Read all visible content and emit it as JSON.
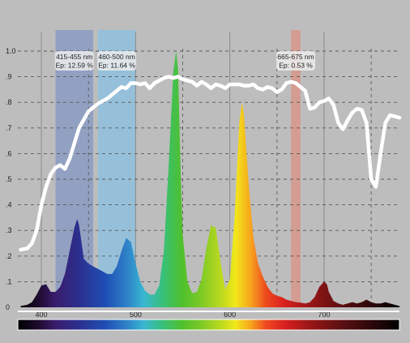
{
  "chart_data": {
    "type": "area",
    "title": "",
    "xlabel": "",
    "ylabel": "",
    "xlim": [
      375,
      780
    ],
    "ylim": [
      0,
      1.0
    ],
    "x_ticks": [
      400,
      500,
      600,
      700
    ],
    "y_ticks": [
      0,
      0.1,
      0.2,
      0.3,
      0.4,
      0.5,
      0.6,
      0.7,
      0.8,
      0.9,
      1.0
    ],
    "y_tick_labels": [
      "0",
      ".1",
      ".2",
      ".3",
      ".4",
      ".5",
      ".6",
      ".7",
      ".8",
      ".9",
      "1.0"
    ],
    "bands": [
      {
        "range": [
          415,
          455
        ],
        "name": "415-455 nm",
        "value": "Ep: 12.59 %",
        "color": "#8f9ec2"
      },
      {
        "range": [
          460,
          500
        ],
        "name": "460-500 nm",
        "value": "Ep: 11.64 %",
        "color": "#94c0da"
      },
      {
        "range": [
          665,
          675
        ],
        "name": "665-675 nm",
        "value": "Ep: 0.53 %",
        "color": "#d69a90"
      }
    ],
    "emission_spectrum": {
      "x": [
        378,
        385,
        390,
        395,
        400,
        405,
        410,
        415,
        420,
        425,
        430,
        435,
        438,
        440,
        445,
        450,
        455,
        460,
        465,
        470,
        475,
        480,
        485,
        490,
        495,
        500,
        505,
        510,
        515,
        520,
        525,
        530,
        535,
        540,
        543,
        545,
        548,
        550,
        555,
        560,
        565,
        570,
        575,
        580,
        585,
        590,
        595,
        600,
        605,
        610,
        613,
        615,
        620,
        625,
        630,
        635,
        640,
        645,
        650,
        655,
        660,
        665,
        670,
        675,
        680,
        685,
        690,
        695,
        700,
        703,
        705,
        710,
        715,
        720,
        725,
        730,
        735,
        740,
        745,
        750,
        755,
        760,
        765,
        770,
        775,
        780
      ],
      "y": [
        0.005,
        0.01,
        0.02,
        0.05,
        0.085,
        0.09,
        0.06,
        0.06,
        0.08,
        0.13,
        0.22,
        0.31,
        0.345,
        0.32,
        0.19,
        0.17,
        0.16,
        0.15,
        0.14,
        0.13,
        0.13,
        0.16,
        0.22,
        0.27,
        0.255,
        0.17,
        0.1,
        0.065,
        0.05,
        0.05,
        0.085,
        0.22,
        0.55,
        0.92,
        1.0,
        0.93,
        0.5,
        0.28,
        0.1,
        0.055,
        0.06,
        0.11,
        0.23,
        0.32,
        0.31,
        0.18,
        0.07,
        0.11,
        0.35,
        0.72,
        0.8,
        0.75,
        0.48,
        0.27,
        0.17,
        0.12,
        0.08,
        0.055,
        0.045,
        0.04,
        0.03,
        0.025,
        0.02,
        0.018,
        0.015,
        0.02,
        0.04,
        0.08,
        0.1,
        0.09,
        0.06,
        0.025,
        0.015,
        0.01,
        0.015,
        0.02,
        0.015,
        0.02,
        0.03,
        0.02,
        0.015,
        0.015,
        0.02,
        0.015,
        0.01,
        0.005
      ]
    },
    "sensitivity_curve": {
      "x": [
        378,
        385,
        390,
        395,
        400,
        405,
        410,
        415,
        420,
        425,
        430,
        440,
        450,
        460,
        470,
        480,
        485,
        490,
        495,
        500,
        505,
        510,
        515,
        520,
        525,
        530,
        535,
        540,
        545,
        550,
        555,
        560,
        565,
        570,
        575,
        580,
        585,
        590,
        595,
        600,
        605,
        610,
        615,
        620,
        625,
        630,
        635,
        640,
        645,
        650,
        655,
        660,
        665,
        670,
        675,
        680,
        685,
        690,
        695,
        700,
        705,
        710,
        715,
        720,
        725,
        730,
        735,
        740,
        745,
        750,
        755,
        760,
        765,
        770,
        775,
        780
      ],
      "y": [
        0.225,
        0.23,
        0.25,
        0.3,
        0.4,
        0.47,
        0.52,
        0.545,
        0.555,
        0.54,
        0.58,
        0.7,
        0.765,
        0.795,
        0.815,
        0.845,
        0.86,
        0.855,
        0.875,
        0.875,
        0.87,
        0.875,
        0.855,
        0.875,
        0.885,
        0.895,
        0.9,
        0.895,
        0.9,
        0.89,
        0.885,
        0.88,
        0.865,
        0.88,
        0.87,
        0.855,
        0.87,
        0.865,
        0.855,
        0.87,
        0.87,
        0.87,
        0.865,
        0.865,
        0.87,
        0.855,
        0.85,
        0.86,
        0.855,
        0.84,
        0.85,
        0.875,
        0.88,
        0.875,
        0.86,
        0.845,
        0.775,
        0.78,
        0.8,
        0.805,
        0.815,
        0.79,
        0.72,
        0.695,
        0.73,
        0.76,
        0.775,
        0.77,
        0.72,
        0.5,
        0.47,
        0.6,
        0.72,
        0.75,
        0.745,
        0.74
      ]
    },
    "colors": {
      "background": "#bdbdbd",
      "curve": "#ffffff",
      "grid_solid": "#8a8a8a",
      "grid_dashed": "#5a5a5a",
      "label_box": "#ececec"
    },
    "grid": true,
    "legend": "none"
  }
}
